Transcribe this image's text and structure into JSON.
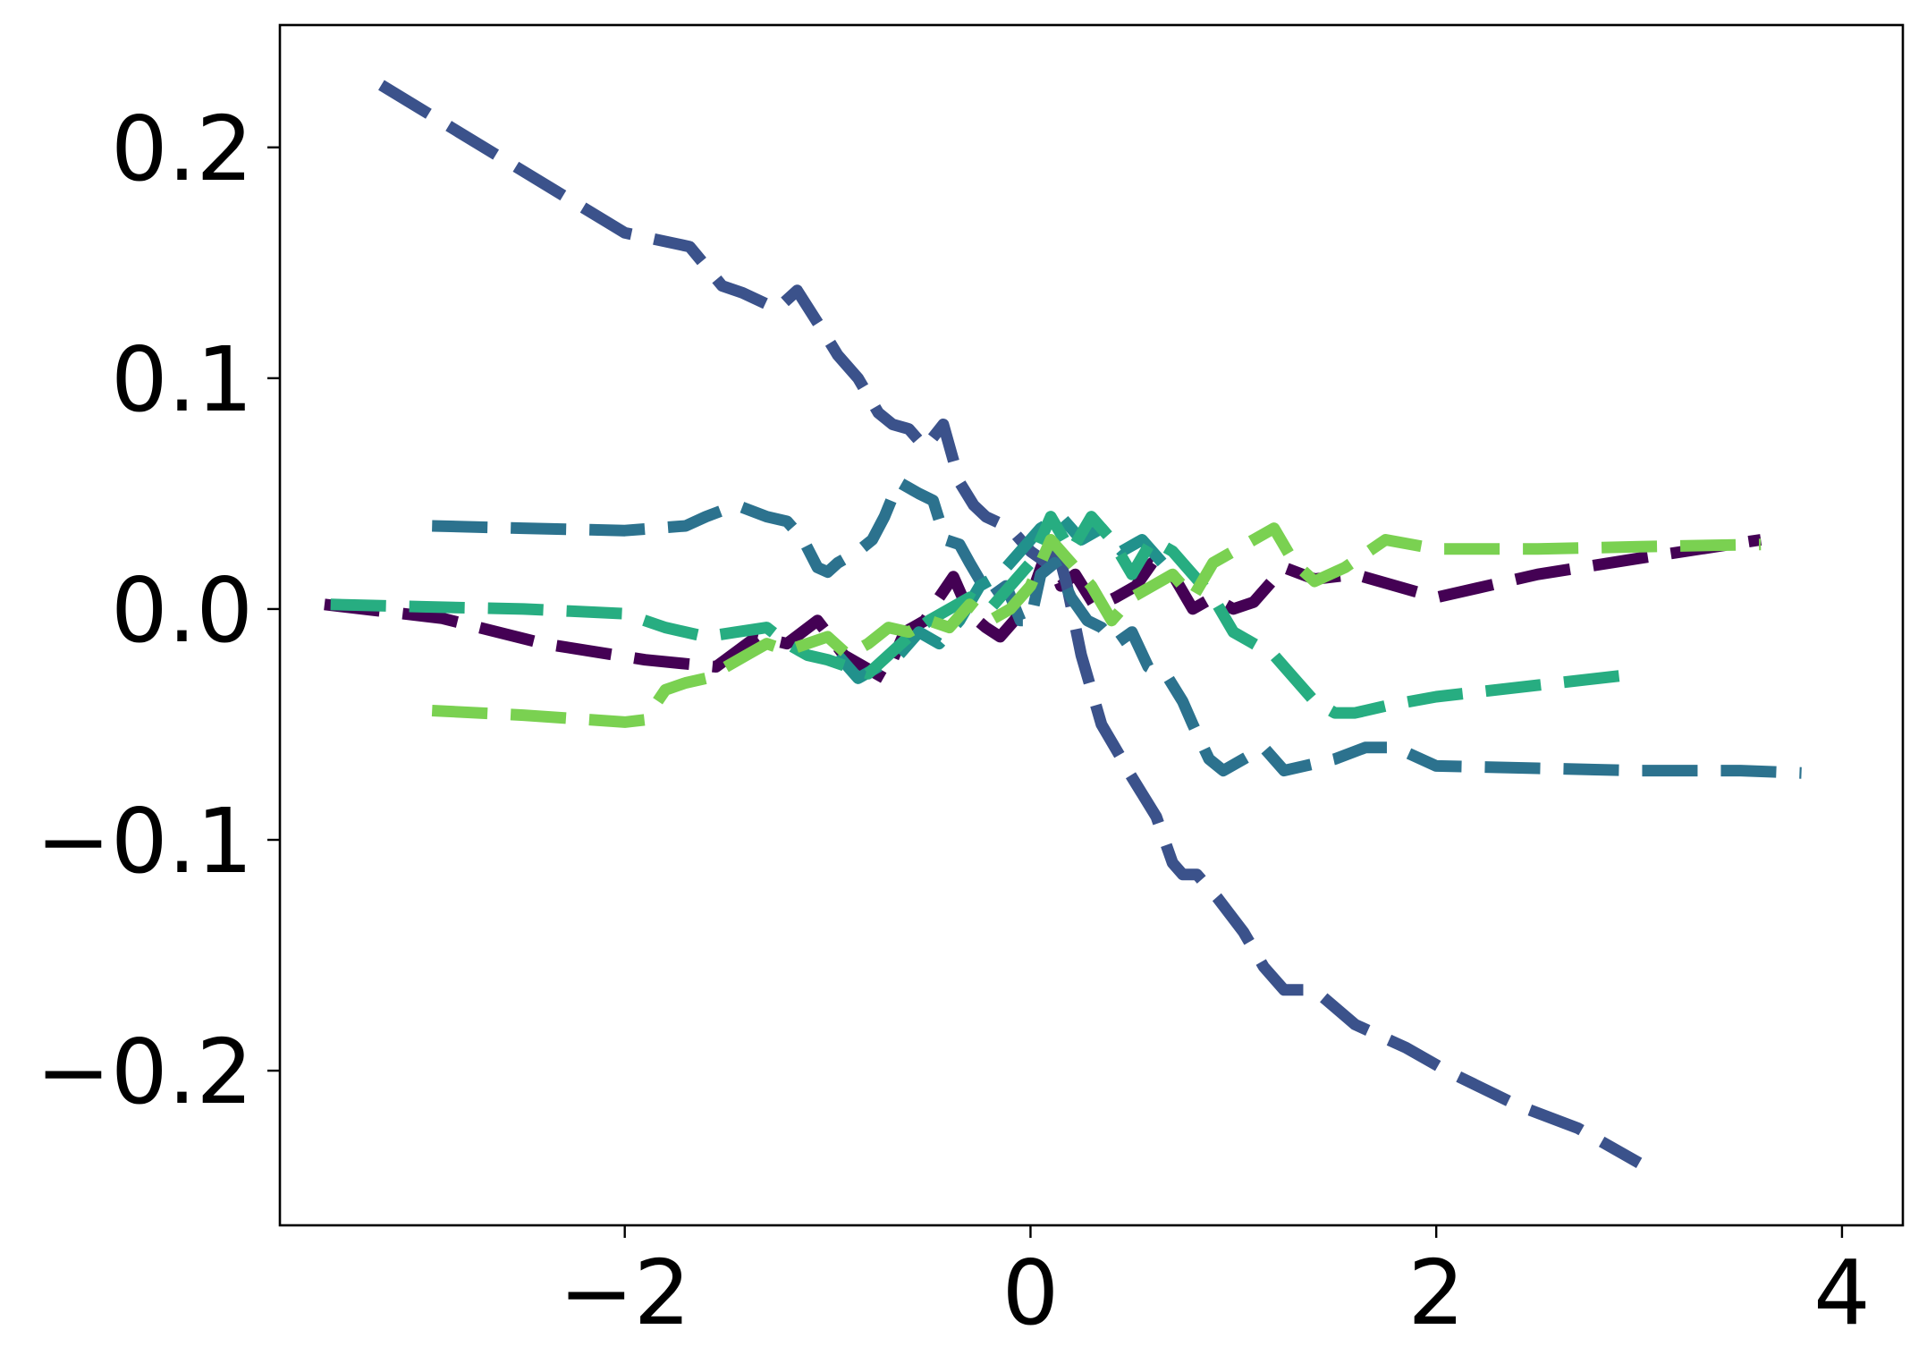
{
  "chart_data": {
    "type": "line",
    "title": "",
    "xlabel": "",
    "ylabel": "",
    "xlim": [
      -3.7,
      4.3
    ],
    "ylim": [
      -0.267,
      0.253
    ],
    "xticks": [
      -2,
      0,
      2,
      4
    ],
    "xtick_labels": [
      "−2",
      "0",
      "2",
      "4"
    ],
    "yticks": [
      -0.2,
      -0.1,
      0.0,
      0.1,
      0.2
    ],
    "ytick_labels": [
      "−0.2",
      "−0.1",
      "0.0",
      "0.1",
      "0.2"
    ],
    "grid": false,
    "legend": "none",
    "line_style": "dashed",
    "series": [
      {
        "color": "#440154",
        "x": [
          -3.48,
          -2.9,
          -2.4,
          -1.9,
          -1.55,
          -1.35,
          -1.2,
          -1.05,
          -0.92,
          -0.82,
          -0.72,
          -0.62,
          -0.52,
          -0.45,
          -0.38,
          -0.3,
          -0.22,
          -0.15,
          -0.08,
          0.0,
          0.08,
          0.15,
          0.22,
          0.32,
          0.42,
          0.52,
          0.6,
          0.7,
          0.8,
          0.9,
          1.0,
          1.1,
          1.25,
          1.4,
          1.6,
          2.0,
          2.5,
          3.0,
          3.6
        ],
        "y": [
          0.002,
          -0.004,
          -0.015,
          -0.022,
          -0.025,
          -0.012,
          -0.015,
          -0.005,
          -0.02,
          -0.025,
          -0.03,
          -0.01,
          -0.005,
          0.005,
          0.014,
          -0.002,
          -0.008,
          -0.012,
          -0.005,
          0.005,
          0.025,
          0.01,
          0.015,
          0.001,
          0.005,
          0.01,
          0.02,
          0.015,
          0.0,
          0.005,
          0.0,
          0.003,
          0.018,
          0.013,
          0.015,
          0.005,
          0.015,
          0.022,
          0.03
        ]
      },
      {
        "color": "#3b528b",
        "x": [
          -3.2,
          -2.6,
          -2.0,
          -1.68,
          -1.52,
          -1.42,
          -1.25,
          -1.15,
          -1.02,
          -0.95,
          -0.85,
          -0.75,
          -0.68,
          -0.6,
          -0.52,
          -0.43,
          -0.35,
          -0.28,
          -0.22,
          -0.1,
          0.0,
          0.08,
          0.12,
          0.18,
          0.25,
          0.3,
          0.35,
          0.45,
          0.48,
          0.55,
          0.62,
          0.7,
          0.75,
          0.82,
          0.92,
          1.05,
          1.15,
          1.25,
          1.4,
          1.6,
          1.85,
          2.05,
          2.4,
          2.7,
          3.0
        ],
        "y": [
          0.227,
          0.195,
          0.163,
          0.157,
          0.14,
          0.137,
          0.13,
          0.138,
          0.12,
          0.11,
          0.1,
          0.085,
          0.08,
          0.078,
          0.07,
          0.08,
          0.055,
          0.045,
          0.04,
          0.035,
          0.025,
          0.02,
          0.03,
          0.01,
          -0.02,
          -0.035,
          -0.05,
          -0.065,
          -0.07,
          -0.08,
          -0.09,
          -0.11,
          -0.115,
          -0.115,
          -0.125,
          -0.14,
          -0.155,
          -0.165,
          -0.165,
          -0.18,
          -0.19,
          -0.2,
          -0.215,
          -0.225,
          -0.24
        ]
      },
      {
        "color": "#2c728e",
        "x": [
          -2.95,
          -2.5,
          -2.0,
          -1.7,
          -1.6,
          -1.45,
          -1.3,
          -1.2,
          -1.12,
          -1.05,
          -1.0,
          -0.95,
          -0.85,
          -0.78,
          -0.72,
          -0.65,
          -0.55,
          -0.48,
          -0.42,
          -0.35,
          -0.3,
          -0.2,
          -0.12,
          -0.05,
          0.0,
          0.05,
          0.12,
          0.2,
          0.28,
          0.35,
          0.42,
          0.5,
          0.58,
          0.62,
          0.68,
          0.75,
          0.8,
          0.88,
          0.95,
          1.05,
          1.15,
          1.25,
          1.35,
          1.5,
          1.65,
          1.8,
          2.0,
          2.5,
          3.0,
          3.5,
          3.8
        ],
        "y": [
          0.036,
          0.035,
          0.034,
          0.036,
          0.04,
          0.045,
          0.04,
          0.038,
          0.03,
          0.018,
          0.016,
          0.02,
          0.025,
          0.03,
          0.04,
          0.055,
          0.05,
          0.047,
          0.03,
          0.028,
          0.02,
          0.005,
          0.01,
          -0.005,
          -0.005,
          0.015,
          0.02,
          0.005,
          -0.005,
          -0.008,
          -0.015,
          -0.01,
          -0.025,
          -0.027,
          -0.03,
          -0.04,
          -0.05,
          -0.065,
          -0.07,
          -0.065,
          -0.06,
          -0.07,
          -0.068,
          -0.065,
          -0.06,
          -0.06,
          -0.068,
          -0.069,
          -0.07,
          -0.07,
          -0.071
        ]
      },
      {
        "color": "#21918c",
        "x": [
          -0.95,
          -0.85,
          -0.75,
          -0.65,
          -0.55,
          -0.45,
          -0.35,
          -0.25,
          -0.15,
          -0.05,
          0.05,
          0.15,
          0.25,
          0.35,
          0.45,
          0.55,
          0.65,
          0.72
        ],
        "y": [
          -0.02,
          -0.03,
          -0.025,
          -0.02,
          -0.01,
          -0.015,
          -0.005,
          0.01,
          0.015,
          0.025,
          0.035,
          0.04,
          0.03,
          0.035,
          0.025,
          0.03,
          0.02,
          0.025
        ]
      },
      {
        "color": "#27ad81",
        "x": [
          -3.45,
          -3.0,
          -2.5,
          -2.0,
          -1.8,
          -1.6,
          -1.45,
          -1.3,
          -1.2,
          -1.1,
          -1.0,
          -0.9,
          -0.8,
          -0.7,
          -0.6,
          -0.5,
          -0.4,
          -0.3,
          -0.2,
          -0.1,
          0.0,
          0.1,
          0.2,
          0.3,
          0.4,
          0.5,
          0.6,
          0.7,
          0.8,
          0.9,
          1.0,
          1.1,
          1.2,
          1.3,
          1.4,
          1.5,
          1.6,
          1.75,
          2.0,
          2.5,
          3.0
        ],
        "y": [
          0.002,
          0.001,
          0.0,
          -0.002,
          -0.008,
          -0.012,
          -0.01,
          -0.008,
          -0.015,
          -0.02,
          -0.022,
          -0.025,
          -0.028,
          -0.02,
          -0.012,
          -0.005,
          0.0,
          0.005,
          0.0,
          0.01,
          0.02,
          0.04,
          0.025,
          0.04,
          0.03,
          0.015,
          0.03,
          0.025,
          0.015,
          0.005,
          -0.01,
          -0.015,
          -0.02,
          -0.03,
          -0.04,
          -0.045,
          -0.045,
          -0.042,
          -0.038,
          -0.033,
          -0.028
        ]
      },
      {
        "color": "#7ad151",
        "x": [
          -2.95,
          -2.5,
          -2.0,
          -1.9,
          -1.8,
          -1.7,
          -1.6,
          -1.5,
          -1.4,
          -1.3,
          -1.2,
          -1.1,
          -1.0,
          -0.9,
          -0.8,
          -0.7,
          -0.6,
          -0.5,
          -0.4,
          -0.3,
          -0.2,
          -0.1,
          0.0,
          0.1,
          0.2,
          0.3,
          0.4,
          0.5,
          0.6,
          0.7,
          0.8,
          0.9,
          1.0,
          1.1,
          1.2,
          1.3,
          1.4,
          1.55,
          1.75,
          2.0,
          2.5,
          3.0,
          3.6
        ],
        "y": [
          -0.044,
          -0.046,
          -0.049,
          -0.048,
          -0.035,
          -0.032,
          -0.03,
          -0.025,
          -0.02,
          -0.015,
          -0.018,
          -0.015,
          -0.012,
          -0.02,
          -0.015,
          -0.008,
          -0.01,
          -0.005,
          -0.008,
          0.002,
          -0.005,
          0.0,
          0.01,
          0.03,
          0.02,
          0.01,
          -0.005,
          0.005,
          0.01,
          0.015,
          0.005,
          0.02,
          0.025,
          0.03,
          0.035,
          0.02,
          0.012,
          0.018,
          0.03,
          0.026,
          0.026,
          0.027,
          0.028
        ]
      }
    ]
  }
}
